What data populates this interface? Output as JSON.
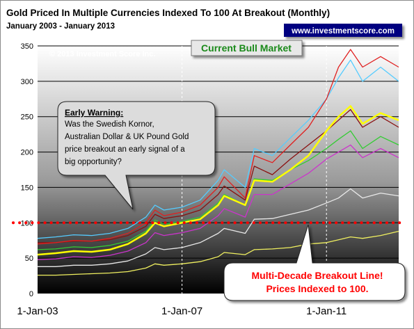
{
  "chart_data": {
    "type": "line",
    "title": "Gold Priced In Multiple Currencies Indexed To 100 At Breakout (Monthly)",
    "subtitle": "January 2003 - January 2013",
    "source_badge": "www.investmentscore.com",
    "copyright": "© 2013 Investment Score Inc.",
    "period_label": "Current Bull Market",
    "callout": {
      "heading": "Early Warning:",
      "lines": [
        "Was the Swedish Kornor,",
        "Australian Dollar & UK Pound Gold",
        "price breakout an early signal of a",
        "big opportunity?"
      ]
    },
    "breakout_note": [
      "Multi-Decade Breakout Line!",
      "Prices Indexed to 100."
    ],
    "breakout_level": 100,
    "ylim": [
      0,
      350
    ],
    "y_ticks": [
      0,
      50,
      100,
      150,
      200,
      250,
      300,
      350
    ],
    "xlim": [
      "2003-01",
      "2013-01"
    ],
    "x_tick_labels": [
      "1-Jan-03",
      "1-Jan-07",
      "1-Jan-11"
    ],
    "grid": true,
    "x": [
      "2003-01",
      "2003-07",
      "2004-01",
      "2004-07",
      "2005-01",
      "2005-07",
      "2006-01",
      "2006-04",
      "2006-07",
      "2007-01",
      "2007-07",
      "2008-01",
      "2008-03",
      "2008-10",
      "2009-01",
      "2009-07",
      "2010-01",
      "2010-07",
      "2011-01",
      "2011-05",
      "2011-09",
      "2012-01",
      "2012-07",
      "2013-01"
    ],
    "series": [
      {
        "color": "#e02020",
        "values": [
          70,
          72,
          75,
          74,
          78,
          85,
          100,
          118,
          110,
          115,
          125,
          150,
          165,
          135,
          195,
          185,
          210,
          235,
          275,
          320,
          345,
          320,
          335,
          320
        ]
      },
      {
        "color": "#55ccff",
        "values": [
          78,
          80,
          83,
          82,
          85,
          92,
          108,
          125,
          118,
          122,
          132,
          160,
          175,
          150,
          205,
          195,
          220,
          245,
          275,
          305,
          330,
          300,
          320,
          300
        ]
      },
      {
        "color": "#ffff00",
        "values": [
          55,
          57,
          60,
          59,
          62,
          70,
          85,
          100,
          95,
          100,
          105,
          125,
          138,
          125,
          160,
          158,
          175,
          195,
          230,
          250,
          265,
          240,
          255,
          245
        ]
      },
      {
        "color": "#8a1010",
        "values": [
          72,
          72,
          74,
          74,
          76,
          82,
          95,
          112,
          106,
          110,
          118,
          140,
          152,
          132,
          180,
          168,
          190,
          210,
          230,
          245,
          260,
          235,
          250,
          235
        ]
      },
      {
        "color": "#33cc33",
        "values": [
          62,
          63,
          66,
          65,
          68,
          74,
          88,
          104,
          98,
          102,
          108,
          128,
          140,
          125,
          162,
          160,
          175,
          188,
          205,
          218,
          230,
          205,
          222,
          210
        ]
      },
      {
        "color": "#cc33cc",
        "values": [
          48,
          49,
          52,
          51,
          54,
          60,
          72,
          86,
          82,
          86,
          92,
          110,
          120,
          108,
          140,
          140,
          155,
          170,
          190,
          200,
          210,
          192,
          205,
          192
        ]
      },
      {
        "color": "#e8e8e8",
        "values": [
          38,
          38,
          40,
          40,
          42,
          46,
          56,
          65,
          62,
          65,
          72,
          85,
          92,
          85,
          105,
          106,
          112,
          118,
          128,
          135,
          148,
          135,
          142,
          138
        ]
      },
      {
        "color": "#f0f060",
        "values": [
          26,
          26,
          27,
          28,
          29,
          31,
          36,
          42,
          40,
          42,
          45,
          52,
          58,
          55,
          62,
          63,
          65,
          70,
          72,
          76,
          80,
          78,
          82,
          88
        ]
      }
    ]
  }
}
